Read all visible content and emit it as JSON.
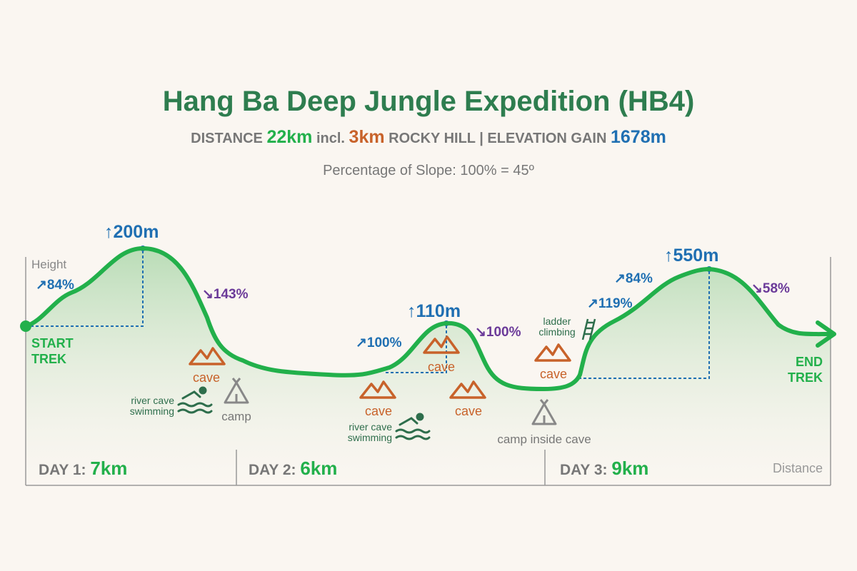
{
  "header": {
    "title": "Hang Ba Deep Jungle Expedition (HB4)",
    "stats": {
      "distance_label": "DISTANCE",
      "distance": "22km",
      "incl": "incl.",
      "rocky": "3km",
      "rocky_label": "ROCKY HILL",
      "separator": "|",
      "elevation_label": "ELEVATION GAIN",
      "elevation": "1678m"
    },
    "subtitle": "Percentage of Slope: 100% = 45º"
  },
  "axes": {
    "y": "Height",
    "x": "Distance"
  },
  "start": [
    "START",
    "TREK"
  ],
  "end": [
    "END",
    "TREK"
  ],
  "peaks": [
    "↑200m",
    "↑110m",
    "↑550m"
  ],
  "slopes": [
    "↗84%",
    "↘143%",
    "↗100%",
    "↘100%",
    "↗119%",
    "↗84%",
    "↘58%"
  ],
  "features": {
    "caves": [
      "cave",
      "cave",
      "cave",
      "cave",
      "cave"
    ],
    "camp": "camp",
    "camp_inside": "camp inside cave",
    "swimming_1": [
      "river cave",
      "swimming"
    ],
    "swimming_2": [
      "river cave",
      "swimming"
    ],
    "ladder": [
      "ladder",
      "climbing"
    ]
  },
  "days": [
    {
      "label": "DAY 1:",
      "distance": "7km"
    },
    {
      "label": "DAY 2:",
      "distance": "6km"
    },
    {
      "label": "DAY 3:",
      "distance": "9km"
    }
  ]
}
